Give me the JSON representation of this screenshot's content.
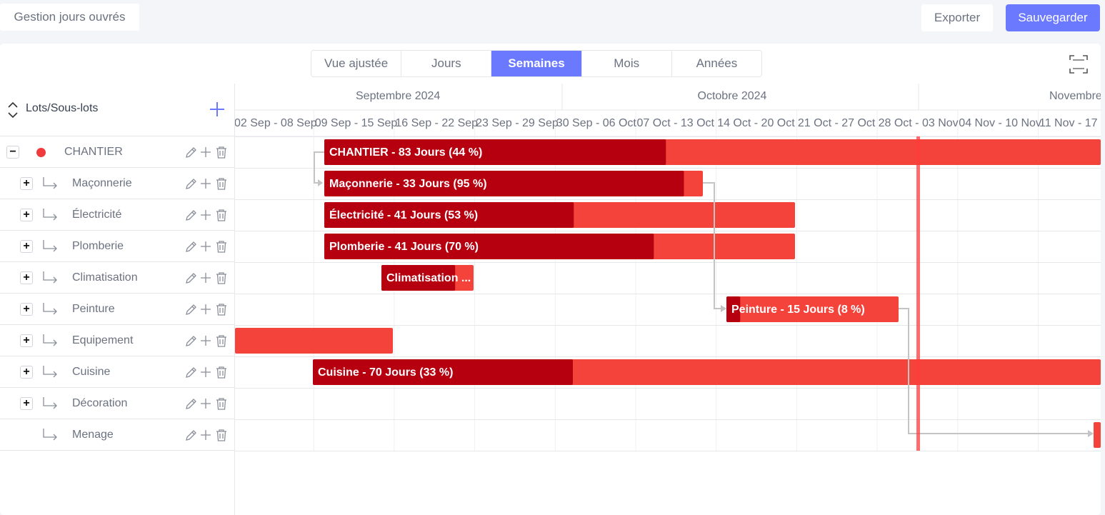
{
  "topbar": {
    "gestion_label": "Gestion jours ouvrés",
    "export_label": "Exporter",
    "save_label": "Sauvegarder"
  },
  "colors": {
    "accent": "#6b79ff",
    "bar_done": "#b7000f",
    "bar_remaining": "#f4433b",
    "today_line": "#ff3b3b"
  },
  "view_tabs": [
    {
      "label": "Vue ajustée",
      "active": false
    },
    {
      "label": "Jours",
      "active": false
    },
    {
      "label": "Semaines",
      "active": true
    },
    {
      "label": "Mois",
      "active": false
    },
    {
      "label": "Années",
      "active": false
    }
  ],
  "fullscreen_icon": "fullscreen-icon",
  "left_panel": {
    "header_title": "Lots/Sous-lots",
    "collapse_icon": "collapse-all-icon",
    "add_icon": "plus-icon"
  },
  "rows": [
    {
      "name": "CHANTIER",
      "expander": "−",
      "type": "root"
    },
    {
      "name": "Maçonnerie",
      "expander": "+",
      "type": "child"
    },
    {
      "name": "Électricité",
      "expander": "+",
      "type": "child"
    },
    {
      "name": "Plomberie",
      "expander": "+",
      "type": "child"
    },
    {
      "name": "Climatisation",
      "expander": "+",
      "type": "child"
    },
    {
      "name": "Peinture",
      "expander": "+",
      "type": "child"
    },
    {
      "name": "Equipement",
      "expander": "+",
      "type": "child"
    },
    {
      "name": "Cuisine",
      "expander": "+",
      "type": "child"
    },
    {
      "name": "Décoration",
      "expander": "+",
      "type": "child"
    },
    {
      "name": "Menage",
      "expander": "",
      "type": "child"
    }
  ],
  "row_action_icons": [
    "edit-icon",
    "plus-icon",
    "trash-icon"
  ],
  "timeline": {
    "months": [
      "Septembre 2024",
      "Octobre 2024",
      "Novembre"
    ],
    "weeks": [
      "02 Sep - 08 Sep",
      "09 Sep - 15 Sep",
      "16 Sep - 22 Sep",
      "23 Sep - 29 Sep",
      "30 Sep - 06 Oct",
      "07 Oct - 13 Oct",
      "14 Oct - 20 Oct",
      "21 Oct - 27 Oct",
      "28 Oct - 03 Nov",
      "04 Nov - 10 Nov",
      "11 Nov - 17"
    ]
  },
  "tasks": [
    {
      "label": "CHANTIER - 83 Jours (44 %)",
      "row": 0,
      "progress": 0.44
    },
    {
      "label": "Maçonnerie - 33 Jours (95 %)",
      "row": 1,
      "progress": 0.95
    },
    {
      "label": "Électricité - 41 Jours (53 %)",
      "row": 2,
      "progress": 0.53
    },
    {
      "label": "Plomberie - 41 Jours (70 %)",
      "row": 3,
      "progress": 0.7
    },
    {
      "label": "Climatisation ...",
      "row": 4,
      "progress": 0.8
    },
    {
      "label": "Peinture - 15 Jours (8 %)",
      "row": 5,
      "progress": 0.08
    },
    {
      "label": "",
      "row": 6,
      "progress": 0
    },
    {
      "label": "Cuisine - 70 Jours (33 %)",
      "row": 7,
      "progress": 0.33
    },
    {
      "label": "",
      "row": 9,
      "progress": 0
    }
  ]
}
